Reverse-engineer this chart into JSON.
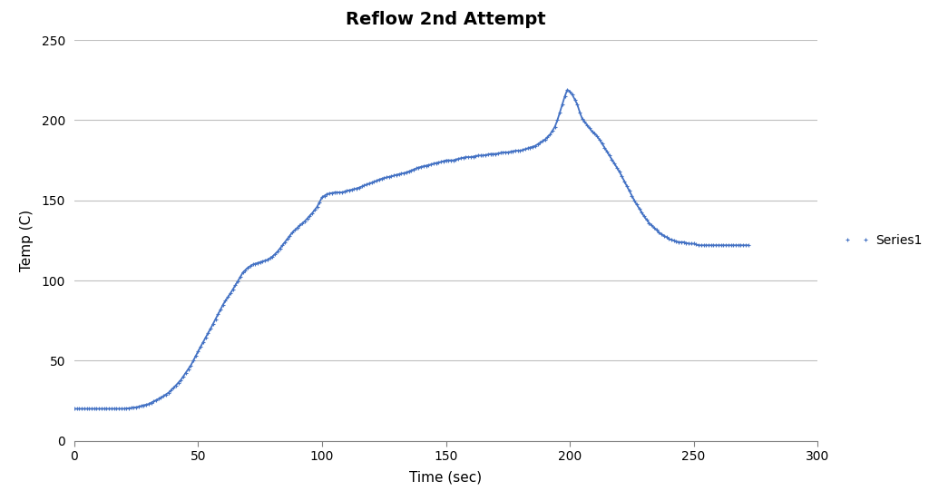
{
  "title": "Reflow 2nd Attempt",
  "xlabel": "Time (sec)",
  "ylabel": "Temp (C)",
  "xlim": [
    0,
    300
  ],
  "ylim": [
    0,
    250
  ],
  "xticks": [
    0,
    50,
    100,
    150,
    200,
    250,
    300
  ],
  "yticks": [
    0,
    50,
    100,
    150,
    200,
    250
  ],
  "line_color": "#4472C4",
  "marker": "+",
  "marker_size": 3,
  "legend_label": "Series1",
  "background_color": "#ffffff",
  "plot_bg_color": "#ffffff",
  "grid_color": "#bfbfbf",
  "title_fontsize": 14,
  "axis_label_fontsize": 11,
  "key_t": [
    0,
    5,
    10,
    15,
    20,
    25,
    30,
    35,
    38,
    40,
    43,
    47,
    50,
    55,
    58,
    60,
    63,
    65,
    68,
    70,
    72,
    74,
    76,
    78,
    80,
    82,
    84,
    86,
    88,
    90,
    93,
    96,
    98,
    100,
    102,
    105,
    108,
    110,
    113,
    115,
    118,
    120,
    123,
    125,
    128,
    130,
    133,
    135,
    138,
    140,
    143,
    145,
    148,
    150,
    153,
    155,
    158,
    160,
    163,
    165,
    168,
    170,
    173,
    175,
    178,
    180,
    182,
    184,
    186,
    188,
    190,
    192,
    194,
    195,
    196,
    197,
    198,
    199,
    200,
    201,
    202,
    203,
    204,
    205,
    206,
    207,
    208,
    209,
    210,
    212,
    214,
    216,
    218,
    220,
    222,
    224,
    226,
    228,
    230,
    232,
    234,
    236,
    238,
    240,
    242,
    244,
    246,
    248,
    250,
    252,
    254,
    256,
    258,
    260,
    262,
    264,
    266,
    268,
    270,
    272
  ],
  "key_temp": [
    20,
    20,
    20,
    20,
    20,
    21,
    23,
    27,
    30,
    33,
    38,
    47,
    56,
    70,
    79,
    85,
    92,
    97,
    105,
    108,
    110,
    111,
    112,
    113,
    115,
    118,
    122,
    126,
    130,
    133,
    137,
    142,
    146,
    152,
    154,
    155,
    155,
    156,
    157,
    158,
    160,
    161,
    163,
    164,
    165,
    166,
    167,
    168,
    170,
    171,
    172,
    173,
    174,
    175,
    175,
    176,
    177,
    177,
    178,
    178,
    179,
    179,
    180,
    180,
    181,
    181,
    182,
    183,
    184,
    186,
    188,
    191,
    196,
    200,
    205,
    210,
    215,
    219,
    218,
    216,
    213,
    210,
    205,
    201,
    199,
    197,
    195,
    193,
    192,
    188,
    183,
    178,
    173,
    168,
    162,
    156,
    150,
    145,
    140,
    136,
    133,
    130,
    128,
    126,
    125,
    124,
    124,
    123,
    123,
    122,
    122,
    122,
    122,
    122,
    122,
    122,
    122,
    122,
    122,
    122
  ]
}
